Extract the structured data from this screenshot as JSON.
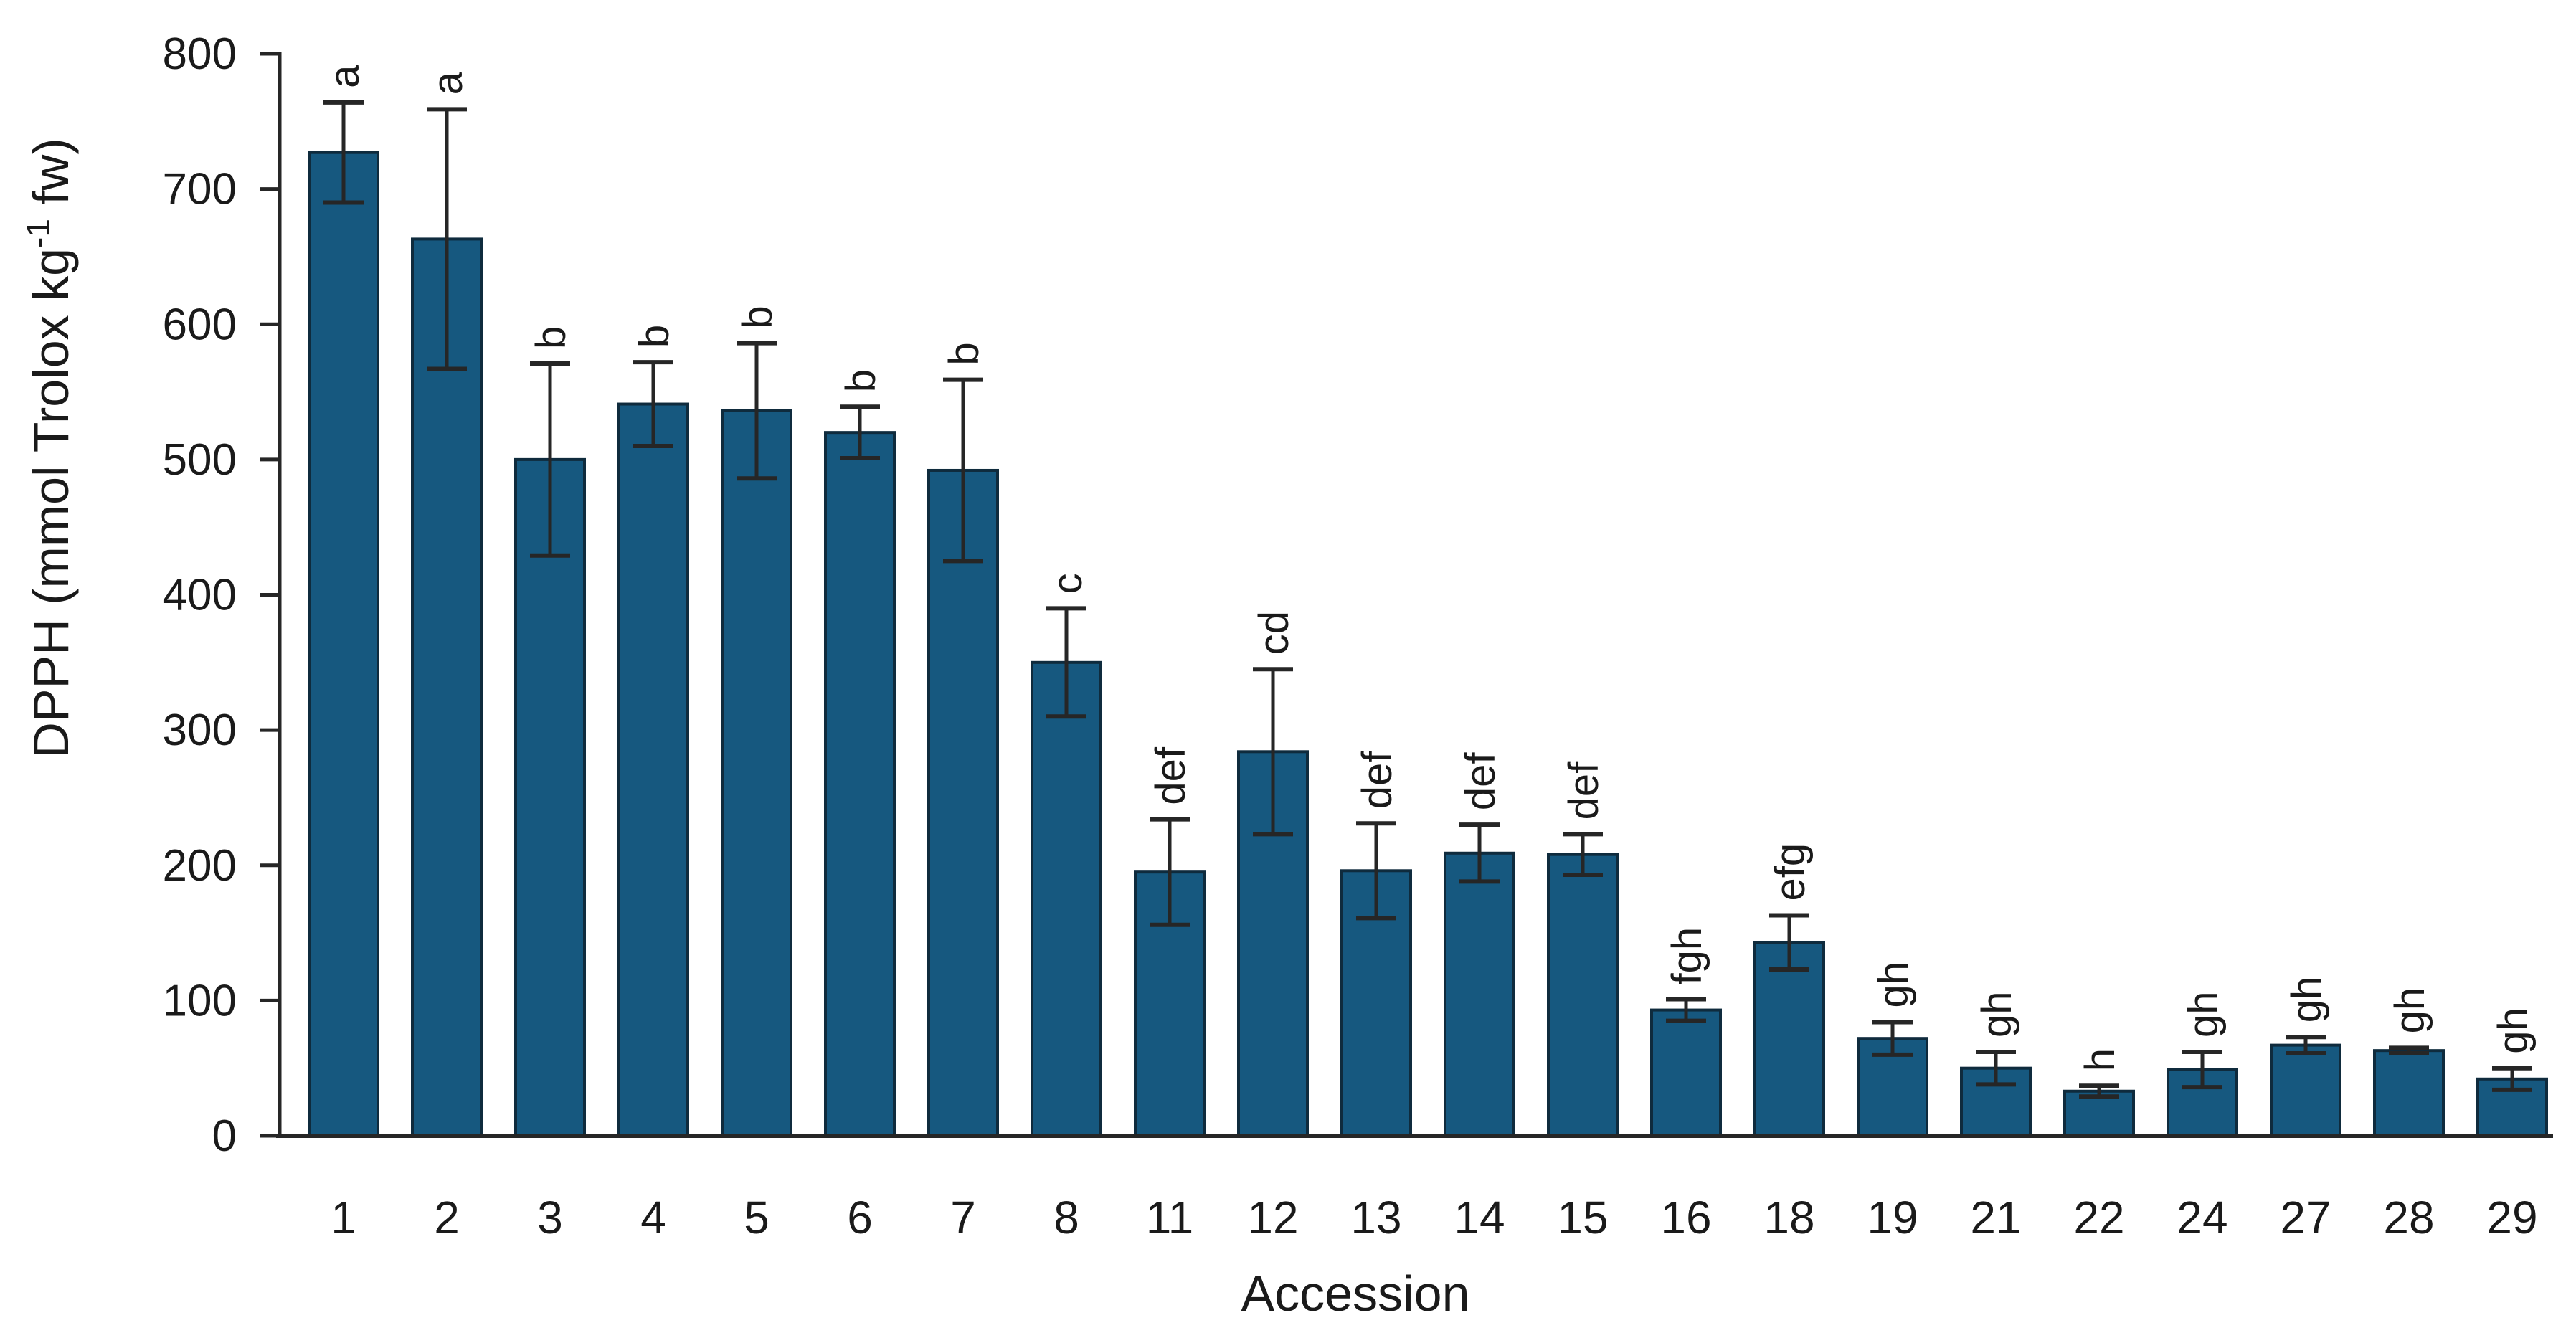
{
  "figure": {
    "background_color": "#ffffff",
    "axis_color": "#262626",
    "text_color": "#1a1a1a"
  },
  "chart_data": {
    "type": "bar",
    "title": "",
    "xlabel": "Accession",
    "ylabel": "DPPH (mmol Trolox kg⁻¹ fw)",
    "ylabel_parts": {
      "base": "DPPH (mmol Trolox kg",
      "superscript": "-1",
      "end": " fw)"
    },
    "ylim": [
      0,
      800
    ],
    "ytick_step": 100,
    "yticks": [
      0,
      100,
      200,
      300,
      400,
      500,
      600,
      700,
      800
    ],
    "grid": "off",
    "legend": "none",
    "bar_fill": "#16587f",
    "bar_stroke": "#0f2b3d",
    "error_bar_color": "#262626",
    "categories": [
      "1",
      "2",
      "3",
      "4",
      "5",
      "6",
      "7",
      "8",
      "11",
      "12",
      "13",
      "14",
      "15",
      "16",
      "18",
      "19",
      "21",
      "22",
      "24",
      "27",
      "28",
      "29"
    ],
    "series": [
      {
        "name": "DPPH",
        "values": [
          727,
          663,
          500,
          541,
          536,
          520,
          492,
          350,
          195,
          284,
          196,
          209,
          208,
          93,
          143,
          72,
          50,
          33,
          49,
          67,
          63,
          42
        ],
        "errors": [
          37,
          96,
          71,
          31,
          50,
          19,
          67,
          40,
          39,
          61,
          35,
          21,
          15,
          8,
          20,
          12,
          12,
          4,
          13,
          6,
          2,
          8
        ],
        "sig_letters": [
          "a",
          "a",
          "b",
          "b",
          "b",
          "b",
          "b",
          "c",
          "def",
          "cd",
          "def",
          "def",
          "def",
          "fgh",
          "efg",
          "gh",
          "gh",
          "h",
          "gh",
          "gh",
          "gh",
          "gh"
        ]
      }
    ]
  }
}
